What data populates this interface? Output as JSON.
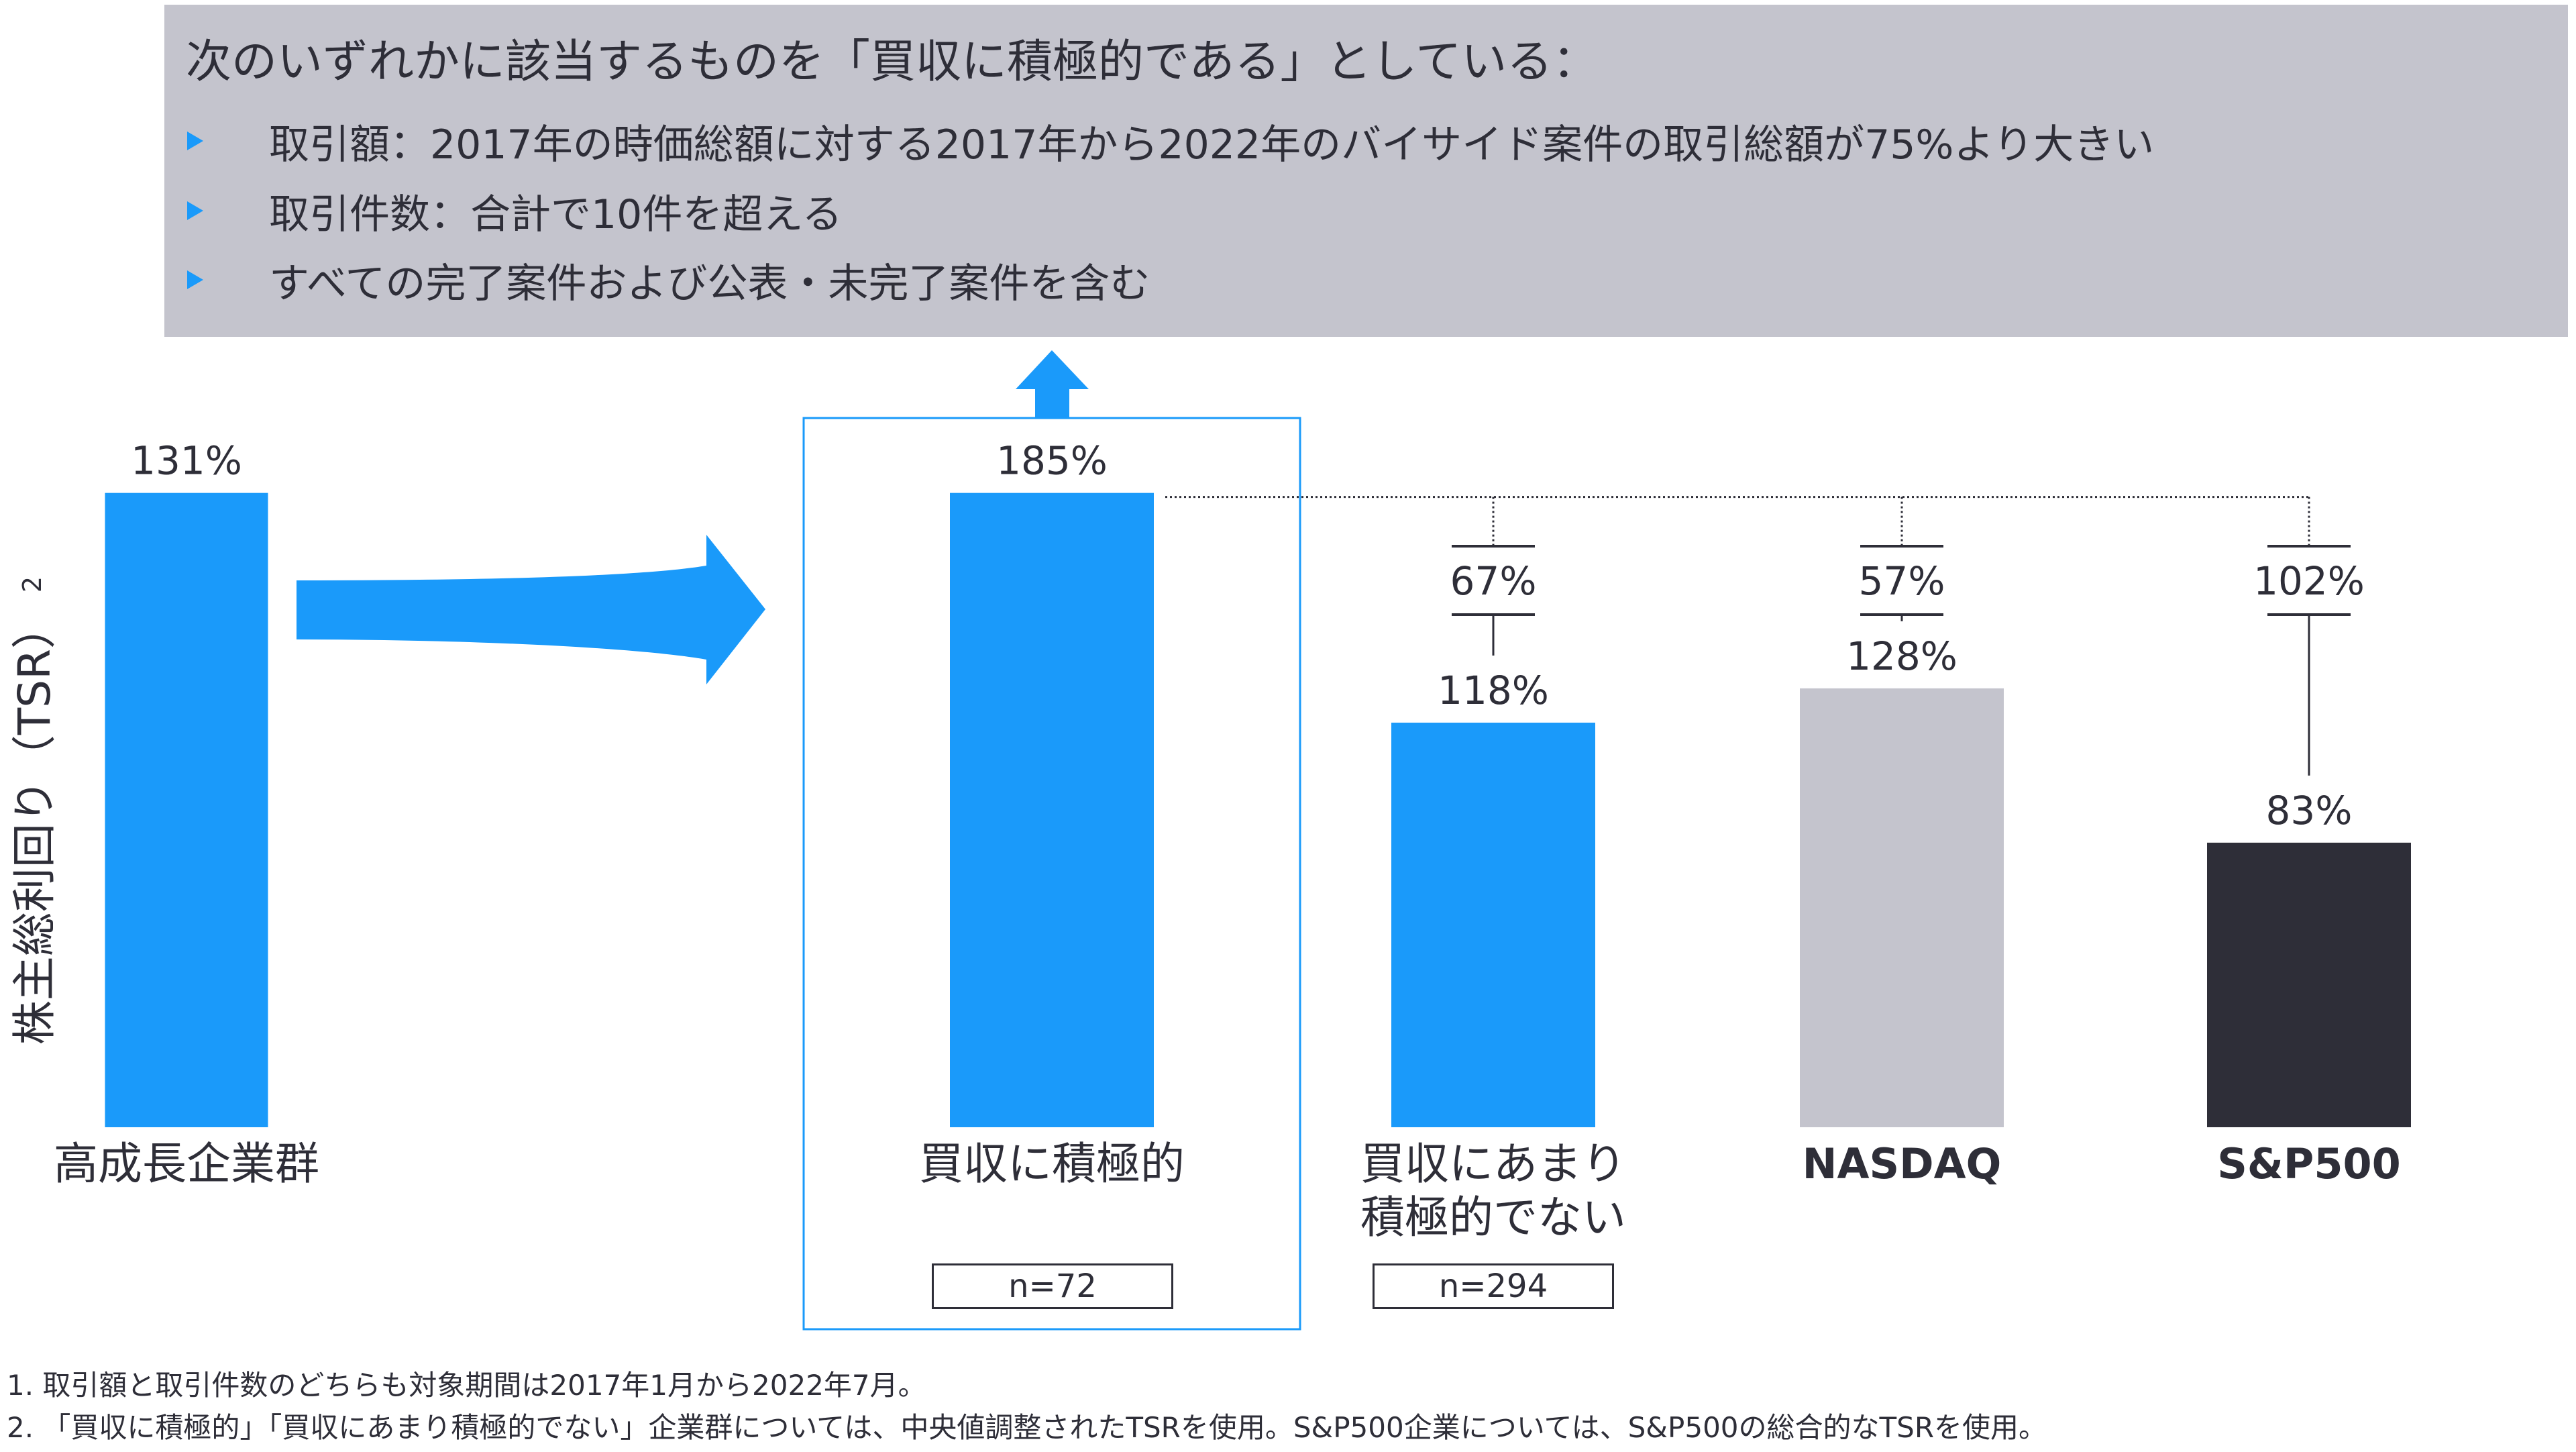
{
  "criteria": {
    "title": "次のいずれかに該当するものを「買収に積極的である」としている：",
    "bullets": [
      "取引額：2017年の時価総額に対する2017年から2022年のバイサイド案件の取引総額が75%より大きい",
      "取引件数：合計で10件を超える",
      "すべての完了案件および公表・未完了案件を含む"
    ],
    "bullet_icon": "triangle-right-icon"
  },
  "colors": {
    "accent_blue": "#1a9afa",
    "gray_bar": "#c4c4cd",
    "dark_bar": "#2e2e38",
    "text": "#2e2e38",
    "box_bg": "#c4c4cd"
  },
  "chart_data": {
    "type": "bar",
    "title": "",
    "ylabel": "株主総利回り（TSR）",
    "ylabel_footnote": "2",
    "xlabel": "",
    "categories": [
      "高成長企業群",
      "買収に積極的",
      "買収にあまり\n積極的でない",
      "NASDAQ",
      "S&P500"
    ],
    "values": [
      131,
      185,
      118,
      128,
      83
    ],
    "value_labels": [
      "131%",
      "185%",
      "118%",
      "128%",
      "83%"
    ],
    "bar_colors": [
      "#1a9afa",
      "#1a9afa",
      "#1a9afa",
      "#c4c4cd",
      "#2e2e38"
    ],
    "sample_sizes": [
      null,
      "n=72",
      "n=294",
      null,
      null
    ],
    "differences": [
      {
        "from": "買収に積極的",
        "to": "買収にあまり\n積極的でない",
        "value": 67,
        "label": "67%"
      },
      {
        "from": "買収に積極的",
        "to": "NASDAQ",
        "value": 57,
        "label": "57%"
      },
      {
        "from": "買収に積極的",
        "to": "S&P500",
        "value": 102,
        "label": "102%"
      }
    ],
    "highlighted_category": "買収に積極的",
    "arrow_icons": [
      "arrow-right-icon",
      "arrow-up-icon"
    ],
    "unit": "%",
    "grid": false,
    "legend": "none"
  },
  "footnotes": [
    "1. 取引額と取引件数のどちらも対象期間は2017年1月から2022年7月。",
    "2. 「買収に積極的」「買収にあまり積極的でない」企業群については、中央値調整されたTSRを使用。S&P500企業については、S&P500の総合的なTSRを使用。"
  ]
}
